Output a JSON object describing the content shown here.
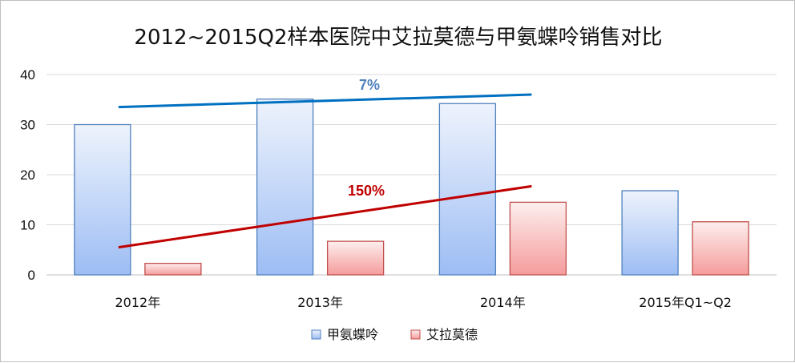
{
  "chart_data": {
    "type": "bar",
    "title": "2012~2015Q2样本医院中艾拉莫德与甲氨蝶呤销售对比",
    "categories": [
      "2012年",
      "2013年",
      "2014年",
      "2015年Q1~Q2"
    ],
    "series": [
      {
        "name": "甲氨蝶呤",
        "values": [
          30,
          35.1,
          34.2,
          16.8
        ],
        "color": "#4f81bd"
      },
      {
        "name": "艾拉莫德",
        "values": [
          2.3,
          6.7,
          14.5,
          10.6
        ],
        "color": "#c0504d"
      }
    ],
    "ylim": [
      0,
      40
    ],
    "yticks": [
      "0",
      "10",
      "20",
      "30",
      "40"
    ],
    "grid": true,
    "legend": "bottom",
    "annotations": [
      {
        "text": "7%",
        "color": "#4f81bd"
      },
      {
        "text": "150%",
        "color": "#c00000"
      }
    ],
    "trend_lines": [
      {
        "series": "甲氨蝶呤",
        "color": "#0070c0",
        "from": {
          "category": "2012年",
          "value": 33.5
        },
        "to": {
          "category": "2014年",
          "value": 36
        }
      },
      {
        "series": "艾拉莫德",
        "color": "#c00000",
        "from": {
          "category": "2012年",
          "value": 5.5
        },
        "to": {
          "category": "2014年",
          "value": 17.7
        }
      }
    ]
  }
}
